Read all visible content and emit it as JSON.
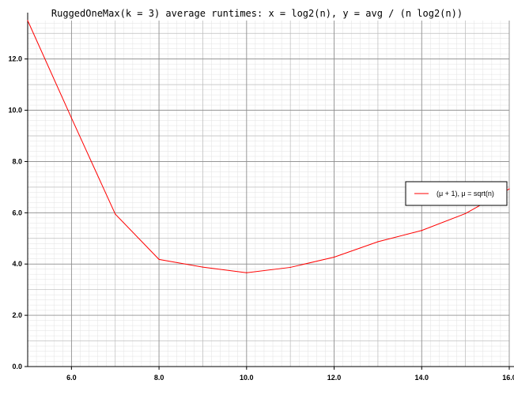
{
  "chart_data": {
    "type": "line",
    "title": "RuggedOneMax(k = 3) average runtimes: x = log2(n), y = avg / (n log2(n))",
    "xlim": [
      5,
      16
    ],
    "ylim": [
      0,
      13.5
    ],
    "x_ticks": [
      6,
      8,
      10,
      12,
      14,
      16
    ],
    "x_tick_labels": [
      "6.0",
      "8.0",
      "10.0",
      "12.0",
      "14.0",
      "16.0"
    ],
    "y_ticks": [
      0,
      2,
      4,
      6,
      8,
      10,
      12
    ],
    "y_tick_labels": [
      "0.0",
      "2.0",
      "4.0",
      "6.0",
      "8.0",
      "10.0",
      "12.0"
    ],
    "grid": true,
    "legend_position": "right",
    "series": [
      {
        "name": "(μ + 1), μ = sqrt(n)",
        "color": "#ff0000",
        "x": [
          5,
          6,
          7,
          8,
          9,
          10,
          11,
          12,
          13,
          14,
          15,
          16
        ],
        "y": [
          13.5,
          9.7,
          5.95,
          4.18,
          3.88,
          3.66,
          3.87,
          4.27,
          4.87,
          5.31,
          5.97,
          6.93
        ]
      }
    ]
  }
}
